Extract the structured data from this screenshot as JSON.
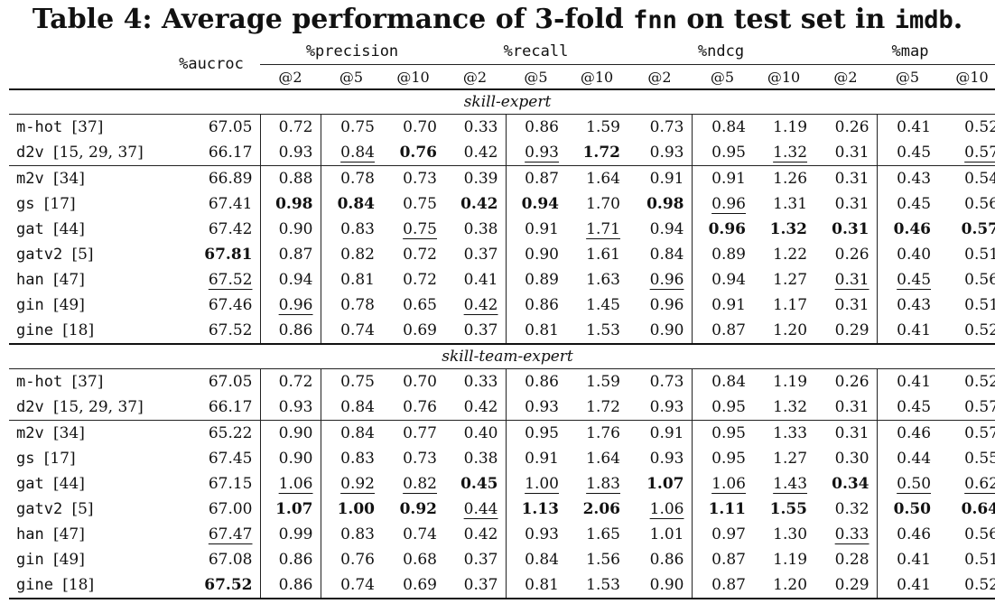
{
  "caption": {
    "prefix": "Table 4: Average performance of 3-fold ",
    "model": "fnn",
    "middle": " on test set in ",
    "dataset": "imdb",
    "suffix": "."
  },
  "header": {
    "metric_single": "%aucroc",
    "groups": [
      {
        "label": "%precision",
        "subs": [
          "@2",
          "@5",
          "@10"
        ]
      },
      {
        "label": "%recall",
        "subs": [
          "@2",
          "@5",
          "@10"
        ]
      },
      {
        "label": "%ndcg",
        "subs": [
          "@2",
          "@5",
          "@10"
        ]
      },
      {
        "label": "%map",
        "subs": [
          "@2",
          "@5",
          "@10"
        ]
      }
    ]
  },
  "sections": [
    {
      "title": "skill-expert",
      "rows": [
        {
          "name": "m-hot",
          "ref": "[37]",
          "values": [
            "67.05",
            "0.72",
            "0.75",
            "0.70",
            "0.33",
            "0.86",
            "1.59",
            "0.73",
            "0.84",
            "1.19",
            "0.26",
            "0.41",
            "0.52"
          ],
          "bold": [],
          "underline": [],
          "sep_after": false
        },
        {
          "name": "d2v",
          "ref": "[15, 29, 37]",
          "values": [
            "66.17",
            "0.93",
            "0.84",
            "0.76",
            "0.42",
            "0.93",
            "1.72",
            "0.93",
            "0.95",
            "1.32",
            "0.31",
            "0.45",
            "0.57"
          ],
          "bold": [
            3,
            6
          ],
          "underline": [
            2,
            5,
            9,
            12
          ],
          "sep_after": true
        },
        {
          "name": "m2v",
          "ref": "[34]",
          "values": [
            "66.89",
            "0.88",
            "0.78",
            "0.73",
            "0.39",
            "0.87",
            "1.64",
            "0.91",
            "0.91",
            "1.26",
            "0.31",
            "0.43",
            "0.54"
          ],
          "bold": [],
          "underline": [],
          "sep_after": false
        },
        {
          "name": "gs",
          "ref": "[17]",
          "values": [
            "67.41",
            "0.98",
            "0.84",
            "0.75",
            "0.42",
            "0.94",
            "1.70",
            "0.98",
            "0.96",
            "1.31",
            "0.31",
            "0.45",
            "0.56"
          ],
          "bold": [
            1,
            2,
            4,
            5,
            7
          ],
          "underline": [
            8
          ],
          "sep_after": false
        },
        {
          "name": "gat",
          "ref": "[44]",
          "values": [
            "67.42",
            "0.90",
            "0.83",
            "0.75",
            "0.38",
            "0.91",
            "1.71",
            "0.94",
            "0.96",
            "1.32",
            "0.31",
            "0.46",
            "0.57"
          ],
          "bold": [
            8,
            9,
            10,
            11,
            12
          ],
          "underline": [
            3,
            6
          ],
          "sep_after": false
        },
        {
          "name": "gatv2",
          "ref": "[5]",
          "values": [
            "67.81",
            "0.87",
            "0.82",
            "0.72",
            "0.37",
            "0.90",
            "1.61",
            "0.84",
            "0.89",
            "1.22",
            "0.26",
            "0.40",
            "0.51"
          ],
          "bold": [
            0
          ],
          "underline": [],
          "sep_after": false
        },
        {
          "name": "han",
          "ref": "[47]",
          "values": [
            "67.52",
            "0.94",
            "0.81",
            "0.72",
            "0.41",
            "0.89",
            "1.63",
            "0.96",
            "0.94",
            "1.27",
            "0.31",
            "0.45",
            "0.56"
          ],
          "bold": [],
          "underline": [
            0,
            7,
            10,
            11
          ],
          "sep_after": false
        },
        {
          "name": "gin",
          "ref": "[49]",
          "values": [
            "67.46",
            "0.96",
            "0.78",
            "0.65",
            "0.42",
            "0.86",
            "1.45",
            "0.96",
            "0.91",
            "1.17",
            "0.31",
            "0.43",
            "0.51"
          ],
          "bold": [],
          "underline": [
            1,
            4
          ],
          "sep_after": false
        },
        {
          "name": "gine",
          "ref": "[18]",
          "values": [
            "67.52",
            "0.86",
            "0.74",
            "0.69",
            "0.37",
            "0.81",
            "1.53",
            "0.90",
            "0.87",
            "1.20",
            "0.29",
            "0.41",
            "0.52"
          ],
          "bold": [],
          "underline": [],
          "sep_after": false
        }
      ]
    },
    {
      "title": "skill-team-expert",
      "rows": [
        {
          "name": "m-hot",
          "ref": "[37]",
          "values": [
            "67.05",
            "0.72",
            "0.75",
            "0.70",
            "0.33",
            "0.86",
            "1.59",
            "0.73",
            "0.84",
            "1.19",
            "0.26",
            "0.41",
            "0.52"
          ],
          "bold": [],
          "underline": [],
          "sep_after": false
        },
        {
          "name": "d2v",
          "ref": "[15, 29, 37]",
          "values": [
            "66.17",
            "0.93",
            "0.84",
            "0.76",
            "0.42",
            "0.93",
            "1.72",
            "0.93",
            "0.95",
            "1.32",
            "0.31",
            "0.45",
            "0.57"
          ],
          "bold": [],
          "underline": [],
          "sep_after": true
        },
        {
          "name": "m2v",
          "ref": "[34]",
          "values": [
            "65.22",
            "0.90",
            "0.84",
            "0.77",
            "0.40",
            "0.95",
            "1.76",
            "0.91",
            "0.95",
            "1.33",
            "0.31",
            "0.46",
            "0.57"
          ],
          "bold": [],
          "underline": [],
          "sep_after": false
        },
        {
          "name": "gs",
          "ref": "[17]",
          "values": [
            "67.45",
            "0.90",
            "0.83",
            "0.73",
            "0.38",
            "0.91",
            "1.64",
            "0.93",
            "0.95",
            "1.27",
            "0.30",
            "0.44",
            "0.55"
          ],
          "bold": [],
          "underline": [],
          "sep_after": false
        },
        {
          "name": "gat",
          "ref": "[44]",
          "values": [
            "67.15",
            "1.06",
            "0.92",
            "0.82",
            "0.45",
            "1.00",
            "1.83",
            "1.07",
            "1.06",
            "1.43",
            "0.34",
            "0.50",
            "0.62"
          ],
          "bold": [
            4,
            7,
            10
          ],
          "underline": [
            1,
            2,
            3,
            5,
            6,
            8,
            9,
            11,
            12
          ],
          "sep_after": false
        },
        {
          "name": "gatv2",
          "ref": "[5]",
          "values": [
            "67.00",
            "1.07",
            "1.00",
            "0.92",
            "0.44",
            "1.13",
            "2.06",
            "1.06",
            "1.11",
            "1.55",
            "0.32",
            "0.50",
            "0.64"
          ],
          "bold": [
            1,
            2,
            3,
            5,
            6,
            8,
            9,
            11,
            12
          ],
          "underline": [
            4,
            7
          ],
          "sep_after": false
        },
        {
          "name": "han",
          "ref": "[47]",
          "values": [
            "67.47",
            "0.99",
            "0.83",
            "0.74",
            "0.42",
            "0.93",
            "1.65",
            "1.01",
            "0.97",
            "1.30",
            "0.33",
            "0.46",
            "0.56"
          ],
          "bold": [],
          "underline": [
            0,
            10
          ],
          "sep_after": false
        },
        {
          "name": "gin",
          "ref": "[49]",
          "values": [
            "67.08",
            "0.86",
            "0.76",
            "0.68",
            "0.37",
            "0.84",
            "1.56",
            "0.86",
            "0.87",
            "1.19",
            "0.28",
            "0.41",
            "0.51"
          ],
          "bold": [],
          "underline": [],
          "sep_after": false
        },
        {
          "name": "gine",
          "ref": "[18]",
          "values": [
            "67.52",
            "0.86",
            "0.74",
            "0.69",
            "0.37",
            "0.81",
            "1.53",
            "0.90",
            "0.87",
            "1.20",
            "0.29",
            "0.41",
            "0.52"
          ],
          "bold": [
            0
          ],
          "underline": [],
          "sep_after": false
        }
      ]
    }
  ]
}
